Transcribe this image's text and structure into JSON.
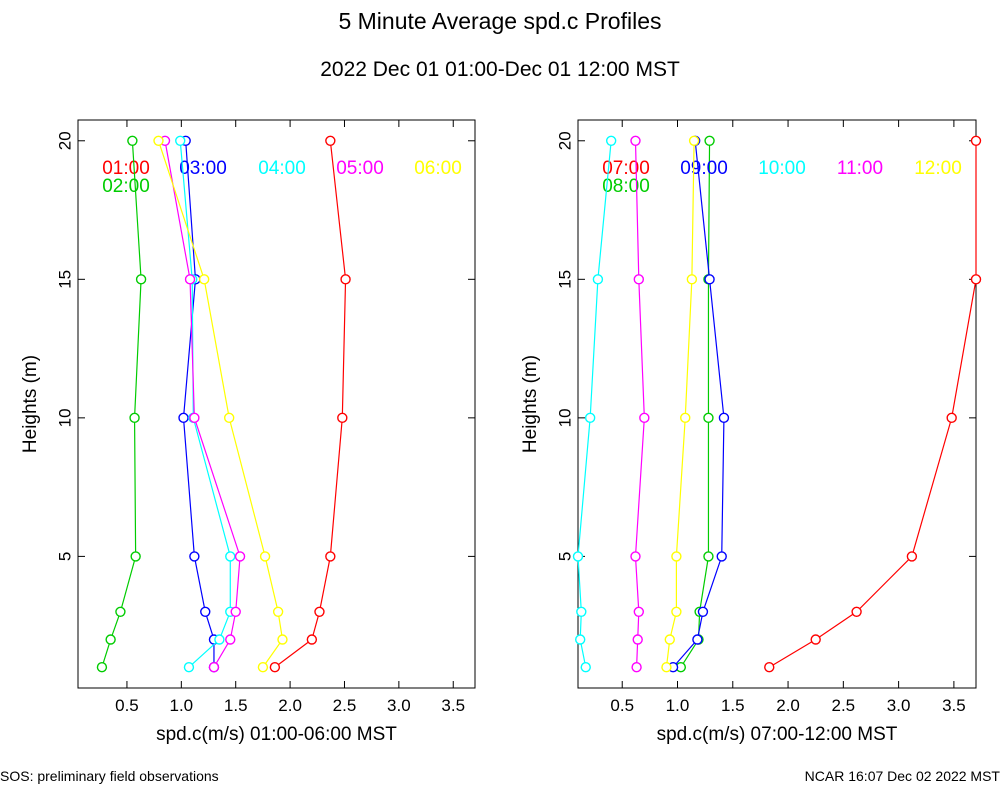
{
  "title": "5 Minute Average spd.c Profiles",
  "subtitle": "2022 Dec 01 01:00-Dec 01 12:00 MST",
  "footer_left": "SOS: preliminary field observations",
  "footer_right": "NCAR 16:07 Dec 02 2022 MST",
  "chart_data": [
    {
      "type": "line",
      "xlabel": "spd.c(m/s) 01:00-06:00 MST",
      "ylabel": "Heights (m)",
      "xlim": [
        0.05,
        3.7
      ],
      "ylim": [
        0.25,
        20.75
      ],
      "xticks": [
        0.5,
        1.0,
        1.5,
        2.0,
        2.5,
        3.0,
        3.5
      ],
      "xtick_labels": [
        "0.5",
        "1.0",
        "1.5",
        "2.0",
        "2.5",
        "3.0",
        "3.5"
      ],
      "yticks": [
        5,
        10,
        15,
        20
      ],
      "ytick_labels": [
        "5",
        "10",
        "15",
        "20"
      ],
      "heights": [
        1,
        2,
        3,
        5,
        10,
        15,
        20
      ],
      "series": [
        {
          "name": "01:00",
          "color": "#ff0000",
          "values": [
            1.86,
            2.2,
            2.27,
            2.37,
            2.48,
            2.51,
            2.37
          ]
        },
        {
          "name": "02:00",
          "color": "#00cc00",
          "values": [
            0.27,
            0.35,
            0.44,
            0.58,
            0.57,
            0.63,
            0.55
          ]
        },
        {
          "name": "03:00",
          "color": "#0000ff",
          "values": [
            1.3,
            1.3,
            1.22,
            1.12,
            1.02,
            1.13,
            1.04
          ]
        },
        {
          "name": "04:00",
          "color": "#00ffff",
          "values": [
            1.07,
            1.35,
            1.45,
            1.45,
            1.11,
            1.1,
            0.99
          ]
        },
        {
          "name": "05:00",
          "color": "#ff00ff",
          "values": [
            1.3,
            1.45,
            1.5,
            1.54,
            1.12,
            1.08,
            0.85
          ]
        },
        {
          "name": "06:00",
          "color": "#ffff00",
          "values": [
            1.75,
            1.93,
            1.89,
            1.77,
            1.44,
            1.21,
            0.79
          ]
        }
      ]
    },
    {
      "type": "line",
      "xlabel": "spd.c(m/s) 07:00-12:00 MST",
      "ylabel": "Heights (m)",
      "xlim": [
        0.1,
        3.7
      ],
      "ylim": [
        0.25,
        20.75
      ],
      "xticks": [
        0.5,
        1.0,
        1.5,
        2.0,
        2.5,
        3.0,
        3.5
      ],
      "xtick_labels": [
        "0.5",
        "1.0",
        "1.5",
        "2.0",
        "2.5",
        "3.0",
        "3.5"
      ],
      "yticks": [
        5,
        10,
        15,
        20
      ],
      "ytick_labels": [
        "5",
        "10",
        "15",
        "20"
      ],
      "heights": [
        1,
        2,
        3,
        5,
        10,
        15,
        20
      ],
      "series": [
        {
          "name": "07:00",
          "color": "#ff0000",
          "values": [
            1.83,
            2.25,
            2.62,
            3.12,
            3.48,
            3.7,
            3.7
          ]
        },
        {
          "name": "08:00",
          "color": "#00cc00",
          "values": [
            1.03,
            1.19,
            1.2,
            1.28,
            1.28,
            1.28,
            1.29
          ]
        },
        {
          "name": "09:00",
          "color": "#0000ff",
          "values": [
            0.96,
            1.18,
            1.23,
            1.4,
            1.42,
            1.29,
            1.16
          ]
        },
        {
          "name": "10:00",
          "color": "#00ffff",
          "values": [
            0.17,
            0.12,
            0.13,
            0.1,
            0.21,
            0.28,
            0.4
          ]
        },
        {
          "name": "11:00",
          "color": "#ff00ff",
          "values": [
            0.63,
            0.64,
            0.65,
            0.62,
            0.7,
            0.65,
            0.62
          ]
        },
        {
          "name": "12:00",
          "color": "#ffff00",
          "values": [
            0.9,
            0.93,
            0.99,
            0.99,
            1.07,
            1.13,
            1.15
          ]
        }
      ]
    }
  ]
}
